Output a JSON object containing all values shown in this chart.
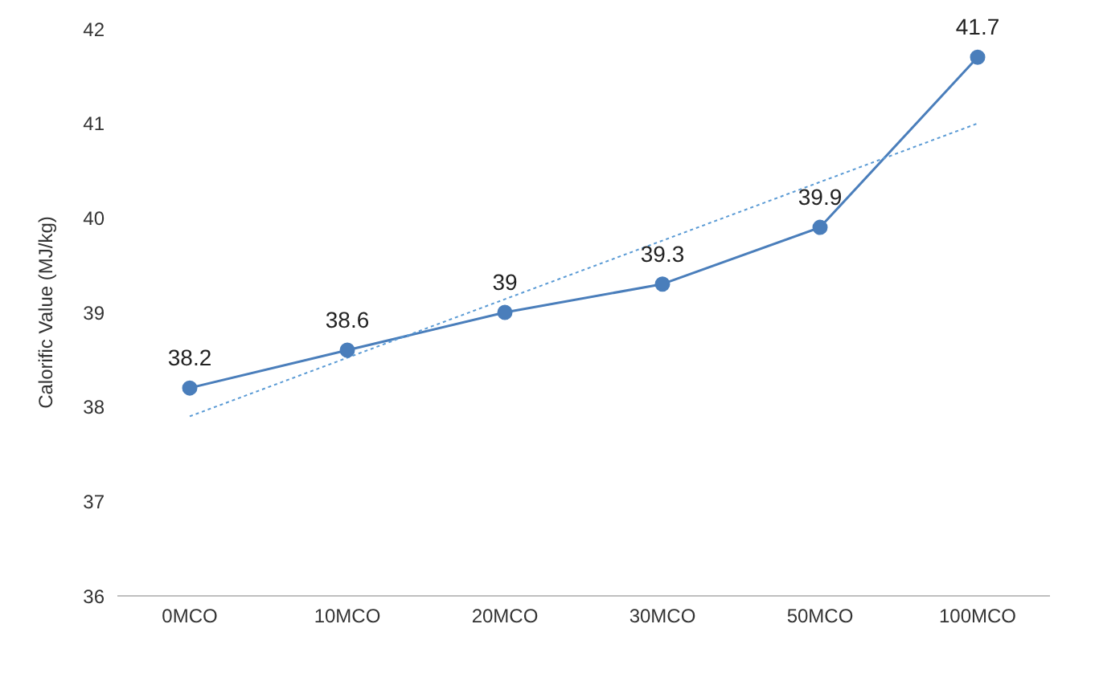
{
  "chart_data": {
    "type": "line",
    "ylabel": "Calorific Value (MJ/kg)",
    "categories": [
      "0MCO",
      "10MCO",
      "20MCO",
      "30MCO",
      "50MCO",
      "100MCO"
    ],
    "series": [
      {
        "color": "#4a7ebb",
        "values": [
          38.2,
          38.6,
          39,
          39.3,
          39.9,
          41.7
        ],
        "value_labels": [
          "38.2",
          "38.6",
          "39",
          "39.3",
          "39.9",
          "41.7"
        ],
        "marker": "circle",
        "line_style": "solid"
      },
      {
        "type": "line",
        "color": "#5b9bd5",
        "x": [
          "0MCO",
          "100MCO"
        ],
        "values": [
          37.9,
          41.0
        ],
        "marker": "none",
        "line_style": "dotted"
      }
    ],
    "ylim": [
      36,
      42
    ],
    "yticks": [
      36,
      37,
      38,
      39,
      40,
      41,
      42
    ],
    "grid": false,
    "legend": false
  }
}
